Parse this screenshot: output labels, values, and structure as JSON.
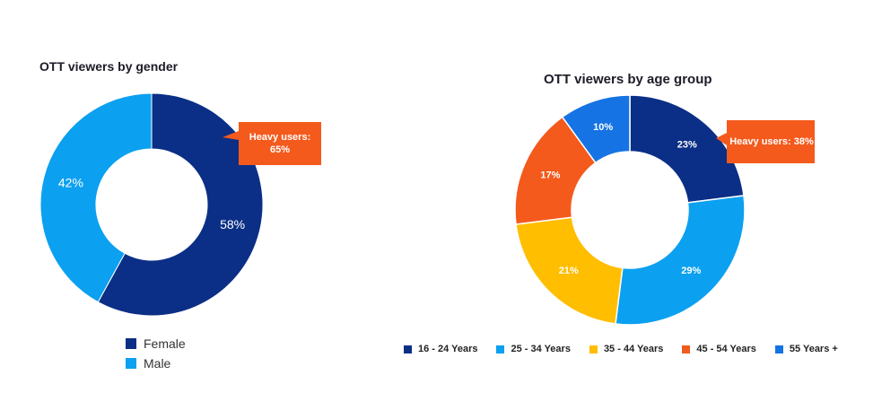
{
  "colors": {
    "female": "#0b2f86",
    "male": "#0ba0f0",
    "age_16_24": "#0b2f86",
    "age_25_34": "#0ba0f0",
    "age_35_44": "#ffbe00",
    "age_45_54": "#f45a1c",
    "age_55_plus": "#1673e3",
    "callout": "#f45a1c"
  },
  "chart_data": [
    {
      "type": "pie",
      "title": "OTT viewers by gender",
      "categories": [
        "Female",
        "Male"
      ],
      "values": [
        58,
        42
      ],
      "value_labels": [
        "58%",
        "42%"
      ],
      "annotation": "Heavy users: 65%",
      "legend": "bottom"
    },
    {
      "type": "pie",
      "title": "OTT viewers by age group",
      "categories": [
        "16 - 24 Years",
        "25 - 34 Years",
        "35 - 44 Years",
        "45 - 54 Years",
        "55 Years +"
      ],
      "values": [
        23,
        29,
        21,
        17,
        10
      ],
      "value_labels": [
        "23%",
        "29%",
        "21%",
        "17%",
        "10%"
      ],
      "annotation": "Heavy users: 38%",
      "legend": "bottom"
    }
  ]
}
